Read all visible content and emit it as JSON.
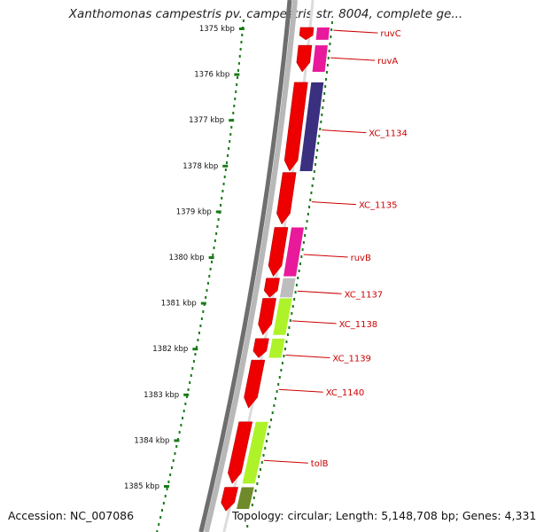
{
  "title": "Xanthomonas campestris pv. campestris str. 8004, complete ge...",
  "footer": {
    "accession": "Accession: NC_007086",
    "topology": "Topology: circular; Length: 5,148,708 bp; Genes: 4,331"
  },
  "colors": {
    "backbone_dark": "#6e6e6e",
    "backbone_light": "#b8b8b8",
    "cds": "#ee0000",
    "gc_dots": "#1a7a1a",
    "label": "#cc0000",
    "magenta": "#e8199a",
    "navy": "#3b2f80",
    "lime": "#aef22a",
    "olive": "#6f8a2a",
    "grey": "#bdbdbd"
  },
  "ticks": [
    {
      "label": "1375 kbp",
      "kbp": 1375
    },
    {
      "label": "1376 kbp",
      "kbp": 1376
    },
    {
      "label": "1377 kbp",
      "kbp": 1377
    },
    {
      "label": "1378 kbp",
      "kbp": 1378
    },
    {
      "label": "1379 kbp",
      "kbp": 1379
    },
    {
      "label": "1380 kbp",
      "kbp": 1380
    },
    {
      "label": "1381 kbp",
      "kbp": 1381
    },
    {
      "label": "1382 kbp",
      "kbp": 1382
    },
    {
      "label": "1383 kbp",
      "kbp": 1383
    },
    {
      "label": "1384 kbp",
      "kbp": 1384
    },
    {
      "label": "1385 kbp",
      "kbp": 1385
    }
  ],
  "cds_blocks": [
    {
      "start": 1374.98,
      "end": 1375.25
    },
    {
      "start": 1375.37,
      "end": 1375.95
    },
    {
      "start": 1376.18,
      "end": 1378.12
    },
    {
      "start": 1378.15,
      "end": 1379.28
    },
    {
      "start": 1379.35,
      "end": 1380.42
    },
    {
      "start": 1380.46,
      "end": 1380.88
    },
    {
      "start": 1380.9,
      "end": 1381.7
    },
    {
      "start": 1381.78,
      "end": 1382.2
    },
    {
      "start": 1382.25,
      "end": 1383.3
    },
    {
      "start": 1383.6,
      "end": 1384.95
    },
    {
      "start": 1385.03,
      "end": 1385.55
    }
  ],
  "genes": [
    {
      "name": "ruvC",
      "start": 1374.98,
      "end": 1375.25,
      "color": "#e8199a",
      "label_kbp": 1375.1
    },
    {
      "name": "ruvA",
      "start": 1375.37,
      "end": 1375.95,
      "color": "#e8199a",
      "label_kbp": 1375.7
    },
    {
      "name": "XC_1134",
      "start": 1376.18,
      "end": 1378.12,
      "color": "#3b2f80",
      "label_kbp": 1377.28
    },
    {
      "name": "XC_1135",
      "start": 1378.15,
      "end": 1379.28,
      "color": "",
      "label_kbp": 1378.85
    },
    {
      "name": "ruvB",
      "start": 1379.35,
      "end": 1380.42,
      "color": "#e8199a",
      "label_kbp": 1380.0
    },
    {
      "name": "XC_1137",
      "start": 1380.46,
      "end": 1380.88,
      "color": "#bdbdbd",
      "label_kbp": 1380.8
    },
    {
      "name": "XC_1138",
      "start": 1380.9,
      "end": 1381.7,
      "color": "#aef22a",
      "label_kbp": 1381.45
    },
    {
      "name": "XC_1139",
      "start": 1381.78,
      "end": 1382.2,
      "color": "#aef22a",
      "label_kbp": 1382.2
    },
    {
      "name": "XC_1140",
      "start": 1382.25,
      "end": 1383.3,
      "color": "",
      "label_kbp": 1382.95
    },
    {
      "name": "tolB",
      "start": 1383.6,
      "end": 1384.95,
      "color": "#aef22a",
      "label_kbp": 1384.5
    },
    {
      "name": "",
      "start": 1385.03,
      "end": 1385.55,
      "color": "#6f8a2a",
      "label_kbp": 0
    }
  ]
}
